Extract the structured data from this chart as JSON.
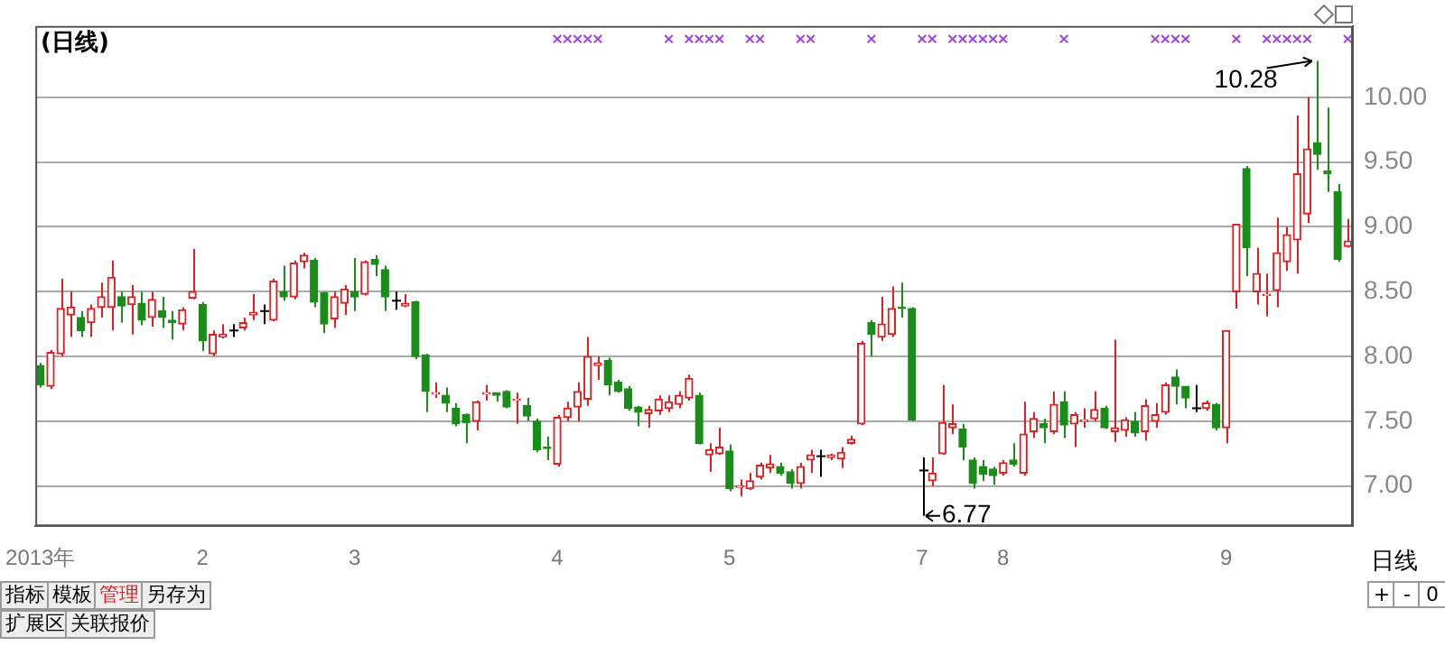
{
  "chart_data": {
    "type": "candlestick",
    "title": "(日线)",
    "categories": [
      "2013年",
      null,
      null,
      null,
      null,
      null,
      null,
      null,
      null,
      null,
      null,
      null,
      null,
      null,
      null,
      null,
      "2",
      null,
      null,
      null,
      null,
      null,
      null,
      null,
      null,
      null,
      null,
      null,
      null,
      null,
      null,
      "3",
      null,
      null,
      null,
      null,
      null,
      null,
      null,
      null,
      null,
      null,
      null,
      null,
      null,
      null,
      null,
      null,
      null,
      null,
      null,
      "4",
      null,
      null,
      null,
      null,
      null,
      null,
      null,
      null,
      null,
      null,
      null,
      null,
      null,
      null,
      null,
      null,
      "5",
      null,
      null,
      null,
      null,
      null,
      null,
      null,
      null,
      null,
      null,
      null,
      null,
      null,
      null,
      null,
      null,
      null,
      null,
      "7",
      null,
      null,
      null,
      null,
      null,
      null,
      null,
      "8",
      null,
      null,
      null,
      null,
      null,
      null,
      null,
      null,
      null,
      null,
      null,
      null,
      null,
      null,
      null,
      null,
      null,
      null,
      null,
      null,
      null,
      "9",
      null,
      null,
      null,
      null,
      null,
      null,
      null,
      null,
      null,
      null,
      null,
      null
    ],
    "ohlc": [
      [
        7.93,
        7.95,
        7.76,
        7.78
      ],
      [
        7.77,
        8.05,
        7.75,
        8.03
      ],
      [
        8.02,
        8.6,
        8.0,
        8.37
      ],
      [
        8.32,
        8.5,
        8.15,
        8.38
      ],
      [
        8.3,
        8.35,
        8.15,
        8.2
      ],
      [
        8.26,
        8.4,
        8.15,
        8.37
      ],
      [
        8.38,
        8.57,
        8.3,
        8.46
      ],
      [
        8.38,
        8.74,
        8.2,
        8.61
      ],
      [
        8.46,
        8.5,
        8.26,
        8.39
      ],
      [
        8.4,
        8.55,
        8.17,
        8.46
      ],
      [
        8.41,
        8.5,
        8.24,
        8.28
      ],
      [
        8.3,
        8.5,
        8.23,
        8.44
      ],
      [
        8.35,
        8.46,
        8.22,
        8.3
      ],
      [
        8.28,
        8.35,
        8.13,
        8.26
      ],
      [
        8.25,
        8.38,
        8.2,
        8.36
      ],
      [
        8.45,
        8.83,
        8.44,
        8.5
      ],
      [
        8.4,
        8.42,
        8.04,
        8.12
      ],
      [
        8.02,
        8.2,
        8.0,
        8.17
      ],
      [
        8.15,
        8.25,
        8.14,
        8.17
      ],
      [
        8.2,
        8.25,
        8.15,
        8.2
      ],
      [
        8.22,
        8.3,
        8.2,
        8.26
      ],
      [
        8.32,
        8.48,
        8.28,
        8.34
      ],
      [
        8.35,
        8.4,
        8.25,
        8.35
      ],
      [
        8.28,
        8.6,
        8.27,
        8.58
      ],
      [
        8.5,
        8.7,
        8.43,
        8.46
      ],
      [
        8.46,
        8.74,
        8.44,
        8.72
      ],
      [
        8.73,
        8.8,
        8.68,
        8.78
      ],
      [
        8.74,
        8.76,
        8.38,
        8.42
      ],
      [
        8.49,
        8.5,
        8.18,
        8.25
      ],
      [
        8.29,
        8.5,
        8.22,
        8.46
      ],
      [
        8.41,
        8.55,
        8.32,
        8.52
      ],
      [
        8.5,
        8.76,
        8.35,
        8.46
      ],
      [
        8.48,
        8.74,
        8.47,
        8.73
      ],
      [
        8.75,
        8.78,
        8.62,
        8.71
      ],
      [
        8.67,
        8.7,
        8.35,
        8.46
      ],
      [
        8.43,
        8.5,
        8.36,
        8.43
      ],
      [
        8.39,
        8.48,
        8.38,
        8.41
      ],
      [
        8.42,
        8.43,
        7.98,
        8.0
      ],
      [
        8.01,
        8.02,
        7.57,
        7.73
      ],
      [
        7.71,
        7.8,
        7.68,
        7.72
      ],
      [
        7.7,
        7.76,
        7.57,
        7.64
      ],
      [
        7.6,
        7.64,
        7.46,
        7.48
      ],
      [
        7.55,
        7.56,
        7.33,
        7.49
      ],
      [
        7.5,
        7.66,
        7.43,
        7.65
      ],
      [
        7.71,
        7.78,
        7.66,
        7.72
      ],
      [
        7.72,
        7.72,
        7.65,
        7.7
      ],
      [
        7.73,
        7.74,
        7.6,
        7.61
      ],
      [
        7.66,
        7.72,
        7.48,
        7.67
      ],
      [
        7.62,
        7.68,
        7.5,
        7.54
      ],
      [
        7.5,
        7.52,
        7.26,
        7.28
      ],
      [
        7.3,
        7.38,
        7.2,
        7.29
      ],
      [
        7.17,
        7.55,
        7.15,
        7.53
      ],
      [
        7.53,
        7.65,
        7.5,
        7.6
      ],
      [
        7.61,
        7.8,
        7.5,
        7.73
      ],
      [
        7.67,
        8.15,
        7.62,
        8.0
      ],
      [
        7.93,
        8.0,
        7.82,
        7.95
      ],
      [
        7.97,
        7.99,
        7.7,
        7.78
      ],
      [
        7.8,
        7.82,
        7.72,
        7.73
      ],
      [
        7.75,
        7.77,
        7.58,
        7.6
      ],
      [
        7.61,
        7.62,
        7.46,
        7.57
      ],
      [
        7.56,
        7.62,
        7.45,
        7.59
      ],
      [
        7.58,
        7.7,
        7.55,
        7.67
      ],
      [
        7.6,
        7.7,
        7.57,
        7.65
      ],
      [
        7.63,
        7.73,
        7.6,
        7.7
      ],
      [
        7.68,
        7.86,
        7.66,
        7.83
      ],
      [
        7.7,
        7.72,
        7.32,
        7.33
      ],
      [
        7.24,
        7.33,
        7.11,
        7.28
      ],
      [
        7.25,
        7.45,
        7.24,
        7.3
      ],
      [
        7.27,
        7.32,
        6.96,
        6.98
      ],
      [
        6.99,
        7.05,
        6.92,
        7.0
      ],
      [
        6.98,
        7.1,
        6.97,
        7.04
      ],
      [
        7.07,
        7.18,
        7.05,
        7.16
      ],
      [
        7.14,
        7.24,
        7.1,
        7.17
      ],
      [
        7.15,
        7.18,
        7.08,
        7.1
      ],
      [
        7.11,
        7.13,
        6.98,
        7.02
      ],
      [
        7.02,
        7.18,
        6.98,
        7.15
      ],
      [
        7.2,
        7.28,
        7.1,
        7.24
      ],
      [
        7.23,
        7.28,
        7.07,
        7.23
      ],
      [
        7.22,
        7.25,
        7.2,
        7.24
      ],
      [
        7.21,
        7.3,
        7.14,
        7.26
      ],
      [
        7.33,
        7.39,
        7.32,
        7.36
      ],
      [
        7.48,
        8.12,
        7.47,
        8.1
      ],
      [
        8.26,
        8.28,
        8.0,
        8.17
      ],
      [
        8.15,
        8.46,
        8.12,
        8.25
      ],
      [
        8.17,
        8.54,
        8.15,
        8.37
      ],
      [
        8.38,
        8.57,
        8.3,
        8.37
      ],
      [
        8.37,
        8.38,
        7.5,
        7.51
      ],
      [
        7.12,
        7.22,
        6.77,
        7.12
      ],
      [
        7.04,
        7.22,
        7.0,
        7.1
      ],
      [
        7.25,
        7.78,
        7.24,
        7.49
      ],
      [
        7.45,
        7.63,
        7.4,
        7.48
      ],
      [
        7.44,
        7.48,
        7.2,
        7.3
      ],
      [
        7.2,
        7.22,
        6.98,
        7.02
      ],
      [
        7.15,
        7.2,
        7.04,
        7.09
      ],
      [
        7.13,
        7.15,
        7.01,
        7.08
      ],
      [
        7.1,
        7.2,
        7.08,
        7.18
      ],
      [
        7.2,
        7.33,
        7.15,
        7.17
      ],
      [
        7.1,
        7.65,
        7.08,
        7.4
      ],
      [
        7.42,
        7.57,
        7.37,
        7.52
      ],
      [
        7.48,
        7.52,
        7.33,
        7.45
      ],
      [
        7.42,
        7.73,
        7.4,
        7.63
      ],
      [
        7.65,
        7.73,
        7.37,
        7.47
      ],
      [
        7.48,
        7.57,
        7.3,
        7.55
      ],
      [
        7.5,
        7.6,
        7.45,
        7.51
      ],
      [
        7.52,
        7.73,
        7.5,
        7.59
      ],
      [
        7.6,
        7.62,
        7.44,
        7.45
      ],
      [
        7.42,
        8.13,
        7.34,
        7.45
      ],
      [
        7.43,
        7.53,
        7.38,
        7.51
      ],
      [
        7.5,
        7.57,
        7.38,
        7.41
      ],
      [
        7.42,
        7.67,
        7.35,
        7.62
      ],
      [
        7.5,
        7.64,
        7.45,
        7.55
      ],
      [
        7.57,
        7.8,
        7.55,
        7.78
      ],
      [
        7.84,
        7.9,
        7.63,
        7.77
      ],
      [
        7.77,
        7.77,
        7.6,
        7.68
      ],
      [
        7.6,
        7.78,
        7.57,
        7.6
      ],
      [
        7.6,
        7.66,
        7.58,
        7.64
      ],
      [
        7.63,
        7.64,
        7.43,
        7.45
      ],
      [
        7.45,
        8.2,
        7.33,
        8.2
      ],
      [
        8.5,
        9.02,
        8.37,
        9.02
      ],
      [
        9.45,
        9.47,
        8.62,
        8.84
      ],
      [
        8.5,
        8.84,
        8.4,
        8.64
      ],
      [
        8.47,
        8.64,
        8.31,
        8.48
      ],
      [
        8.51,
        9.07,
        8.38,
        8.8
      ],
      [
        8.73,
        9.0,
        8.66,
        8.94
      ],
      [
        8.9,
        9.86,
        8.64,
        9.41
      ],
      [
        9.1,
        10.0,
        9.03,
        9.6
      ],
      [
        9.65,
        10.28,
        9.44,
        9.56
      ],
      [
        9.43,
        9.92,
        9.27,
        9.41
      ],
      [
        9.27,
        9.33,
        8.73,
        8.75
      ],
      [
        8.85,
        9.06,
        8.84,
        8.89
      ]
    ],
    "colors": [
      "#1a8c1a",
      "#e02020",
      "#e02020",
      "#e02020",
      "#1a8c1a",
      "#e02020",
      "#e02020",
      "#e02020",
      "#1a8c1a",
      "#e02020",
      "#1a8c1a",
      "#e02020",
      "#1a8c1a",
      "#1a8c1a",
      "#e02020",
      "#e02020",
      "#1a8c1a",
      "#e02020",
      "#e02020",
      "#000000",
      "#e02020",
      "#e02020",
      "#000000",
      "#e02020",
      "#1a8c1a",
      "#e02020",
      "#e02020",
      "#1a8c1a",
      "#1a8c1a",
      "#e02020",
      "#e02020",
      "#1a8c1a",
      "#e02020",
      "#1a8c1a",
      "#1a8c1a",
      "#000000",
      "#e02020",
      "#1a8c1a",
      "#1a8c1a",
      "#e02020",
      "#1a8c1a",
      "#1a8c1a",
      "#1a8c1a",
      "#e02020",
      "#e02020",
      "#1a8c1a",
      "#1a8c1a",
      "#e02020",
      "#1a8c1a",
      "#1a8c1a",
      "#1a8c1a",
      "#e02020",
      "#e02020",
      "#e02020",
      "#e02020",
      "#e02020",
      "#1a8c1a",
      "#1a8c1a",
      "#1a8c1a",
      "#1a8c1a",
      "#e02020",
      "#e02020",
      "#e02020",
      "#e02020",
      "#e02020",
      "#1a8c1a",
      "#e02020",
      "#e02020",
      "#1a8c1a",
      "#e02020",
      "#e02020",
      "#e02020",
      "#e02020",
      "#1a8c1a",
      "#1a8c1a",
      "#e02020",
      "#e02020",
      "#000000",
      "#e02020",
      "#e02020",
      "#e02020",
      "#e02020",
      "#1a8c1a",
      "#e02020",
      "#e02020",
      "#1a8c1a",
      "#1a8c1a",
      "#000000",
      "#e02020",
      "#e02020",
      "#e02020",
      "#1a8c1a",
      "#1a8c1a",
      "#1a8c1a",
      "#1a8c1a",
      "#e02020",
      "#1a8c1a",
      "#e02020",
      "#e02020",
      "#1a8c1a",
      "#e02020",
      "#1a8c1a",
      "#e02020",
      "#e02020",
      "#e02020",
      "#1a8c1a",
      "#e02020",
      "#e02020",
      "#1a8c1a",
      "#e02020",
      "#e02020",
      "#e02020",
      "#1a8c1a",
      "#1a8c1a",
      "#000000",
      "#e02020",
      "#1a8c1a",
      "#e02020",
      "#e02020",
      "#1a8c1a",
      "#e02020",
      "#e02020",
      "#e02020",
      "#e02020",
      "#e02020",
      "#e02020",
      "#1a8c1a",
      "#1a8c1a",
      "#1a8c1a",
      "#e02020"
    ],
    "series": [
      {
        "type": "scatter",
        "marker": "cross",
        "color": "#a040e0",
        "values": [
          null,
          null,
          null,
          null,
          null,
          null,
          null,
          null,
          null,
          null,
          null,
          null,
          null,
          null,
          null,
          null,
          null,
          null,
          null,
          null,
          null,
          null,
          null,
          null,
          null,
          null,
          null,
          null,
          null,
          null,
          null,
          null,
          null,
          null,
          null,
          null,
          null,
          null,
          null,
          null,
          null,
          null,
          null,
          null,
          null,
          null,
          null,
          null,
          null,
          null,
          null,
          10.45,
          10.45,
          10.45,
          10.45,
          10.45,
          null,
          null,
          null,
          null,
          null,
          null,
          10.45,
          null,
          10.45,
          10.45,
          10.45,
          10.45,
          null,
          null,
          10.45,
          10.45,
          null,
          null,
          null,
          10.45,
          10.45,
          null,
          null,
          null,
          null,
          null,
          10.45,
          null,
          null,
          null,
          null,
          10.45,
          10.45,
          null,
          10.45,
          10.45,
          10.45,
          10.45,
          10.45,
          10.45,
          null,
          null,
          null,
          null,
          null,
          10.45,
          null,
          null,
          null,
          null,
          null,
          null,
          null,
          null,
          10.45,
          10.45,
          10.45,
          10.45,
          null,
          null,
          null,
          null,
          10.45,
          null,
          null,
          10.45,
          10.45,
          10.45,
          10.45,
          10.45,
          null,
          null,
          null,
          10.45
        ]
      }
    ],
    "ylim": [
      6.69,
      10.55
    ],
    "yticks": [
      {
        "value": 7,
        "label": "7.00"
      },
      {
        "value": 7.5,
        "label": "7.50"
      },
      {
        "value": 8,
        "label": "8.00"
      },
      {
        "value": 8.5,
        "label": "8.50"
      },
      {
        "value": 9,
        "label": "9.00"
      },
      {
        "value": 9.5,
        "label": "9.50"
      },
      {
        "value": 10,
        "label": "10.00"
      }
    ],
    "grid": "y",
    "legend": false,
    "annotations": [
      "10.28",
      "6.77",
      "指标",
      "模板",
      "管理",
      "另存为",
      "扩展区",
      "关联报价",
      "日线",
      "+",
      "-",
      "0"
    ]
  }
}
